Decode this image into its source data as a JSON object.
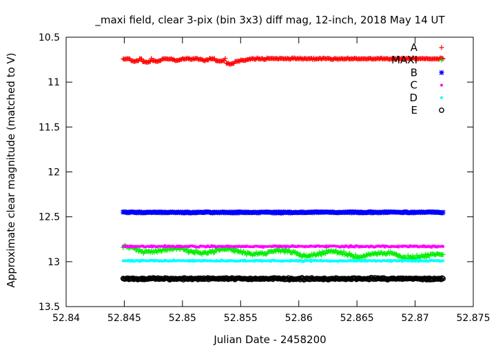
{
  "chart_data": {
    "type": "scatter",
    "title": "_maxi field, clear 3-pix (bin 3x3) diff mag, 12-inch, 2018 May 14 UT",
    "xlabel": "Julian Date - 2458200",
    "ylabel": "Approximate clear magnitude (matched to V)",
    "xlim": [
      52.84,
      52.875
    ],
    "ylim": [
      10.5,
      13.5
    ],
    "y_inverted": true,
    "x_ticks": [
      "52.84",
      "52.845",
      "52.85",
      "52.855",
      "52.86",
      "52.865",
      "52.87",
      "52.875"
    ],
    "y_ticks": [
      "10.5",
      "11",
      "11.5",
      "12",
      "12.5",
      "13",
      "13.5"
    ],
    "grid": false,
    "legend_position": "top-right",
    "x_range": [
      52.8449,
      52.8724
    ],
    "series": [
      {
        "name": "A",
        "marker": "plus",
        "color": "#ff0000",
        "mean": 10.74,
        "scatter": 0.012,
        "dips": [
          [
            52.8459,
            10.77
          ],
          [
            52.8469,
            10.78
          ],
          [
            52.8478,
            10.77
          ],
          [
            52.8495,
            10.76
          ],
          [
            52.8519,
            10.76
          ],
          [
            52.8532,
            10.77
          ],
          [
            52.8541,
            10.8
          ],
          [
            52.8546,
            10.77
          ],
          [
            52.8553,
            10.76
          ]
        ]
      },
      {
        "name": "MAXI",
        "marker": "plus",
        "color": "#00ee00",
        "mean": 12.92,
        "scatter": 0.03,
        "start": [
          52.8449,
          12.86
        ],
        "end": [
          52.8724,
          12.94
        ]
      },
      {
        "name": "B",
        "marker": "cross-star",
        "color": "#0000ff",
        "mean": 12.45,
        "scatter": 0.012
      },
      {
        "name": "C",
        "marker": "square",
        "color": "#ff00ff",
        "mean": 12.83,
        "scatter": 0.012
      },
      {
        "name": "D",
        "marker": "square",
        "color": "#00ffff",
        "mean": 12.99,
        "scatter": 0.012
      },
      {
        "name": "E",
        "marker": "circle",
        "color": "#000000",
        "mean": 13.19,
        "scatter": 0.015
      }
    ]
  }
}
